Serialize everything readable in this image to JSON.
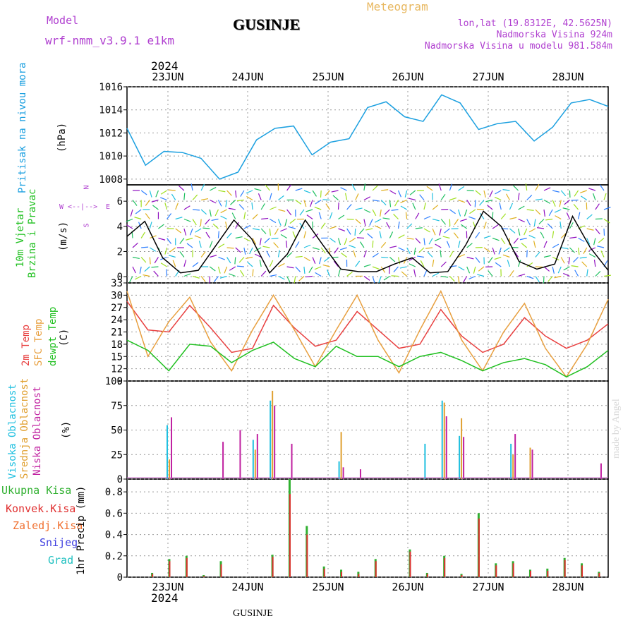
{
  "header": {
    "model_label": "Model",
    "model_value": "wrf-nmm_v3.9.1 e1km",
    "station": "GUSINJE",
    "meteogram": "Meteogram",
    "lonlat": "lon,lat (19.8312E, 42.5625N)",
    "altitude": "Nadmorska Visina 924m",
    "model_altitude": "Nadmorska Visina u modelu 981.584m",
    "year_top": "2024",
    "year_bottom": "2024",
    "footer_station": "GUSINJE",
    "watermark": "made by Angel"
  },
  "panel_labels": {
    "pressure": [
      "Pritisak na nivou mora",
      "(hPa)"
    ],
    "wind": [
      "10m Vjetar",
      "Brzina i Pravac",
      "(m/s)"
    ],
    "compass": [
      "N",
      "W",
      "E",
      "S"
    ],
    "temp": [
      "2m Temp",
      "SFC Temp",
      "dewpt Temp",
      "(C)"
    ],
    "cloud": [
      "Visoka Oblacnost",
      "Srednja Oblacnost",
      "Niska Oblacnost",
      "(%)"
    ],
    "precip_legend": [
      "Ukupna Kisa",
      "Konvek.Kisa",
      "Zaledj.Kisa",
      "Snijeg",
      "Grad"
    ],
    "precip_unit": "1hr Precip (mm)"
  },
  "colors": {
    "pressure": "#1ca0e0",
    "temp2m": "#e84040",
    "sfc": "#e8a040",
    "dew": "#20c020",
    "high": "#20c0e0",
    "mid": "#e0a030",
    "low": "#c020a0",
    "total": "#30b030",
    "conv": "#e03030",
    "frozen": "#f07030",
    "snow": "#4040e0",
    "hail": "#20c0c0"
  },
  "chart_data": [
    {
      "type": "line",
      "panel": "pressure",
      "x": [
        "22JUN 12",
        "23JUN 00",
        "23JUN 03",
        "23JUN 06",
        "23JUN 12",
        "23JUN 18",
        "23JUN 21",
        "24JUN 00",
        "24JUN 06",
        "24JUN 12",
        "24JUN 18",
        "24JUN 21",
        "25JUN 00",
        "25JUN 06",
        "25JUN 12",
        "25JUN 18",
        "26JUN 00",
        "26JUN 06",
        "26JUN 12",
        "26JUN 18",
        "27JUN 00",
        "27JUN 06",
        "27JUN 12",
        "27JUN 18",
        "28JUN 00",
        "28JUN 06",
        "28JUN 12"
      ],
      "series": [
        {
          "values": [
            1012.4,
            1009.2,
            1010.4,
            1010.3,
            1009.8,
            1008.0,
            1008.6,
            1011.4,
            1012.4,
            1012.6,
            1010.1,
            1011.2,
            1011.5,
            1014.2,
            1014.7,
            1013.4,
            1013.0,
            1015.3,
            1014.6,
            1012.3,
            1012.8,
            1013.0,
            1011.3,
            1012.5,
            1014.6,
            1014.9,
            1014.3
          ]
        }
      ],
      "yticks": [
        1008,
        1010,
        1012,
        1014,
        1016
      ],
      "ylim": [
        1007.5,
        1016
      ]
    },
    {
      "type": "line",
      "panel": "wind_speed",
      "yticks": [
        0,
        2,
        4,
        6
      ],
      "ylim": [
        -0.5,
        7.3
      ],
      "series": [
        {
          "values": [
            3.2,
            4.4,
            1.5,
            0.3,
            0.5,
            2.5,
            4.5,
            3.0,
            0.3,
            1.8,
            4.5,
            2.5,
            0.6,
            0.4,
            0.4,
            1.0,
            1.5,
            0.3,
            0.4,
            2.5,
            5.2,
            4.0,
            1.2,
            0.6,
            1.0,
            4.8,
            2.3,
            0.5
          ]
        }
      ]
    },
    {
      "type": "line",
      "panel": "temperature",
      "x": [
        "22JUN 12",
        "23JUN 00",
        "23JUN 06",
        "23JUN 12",
        "23JUN 18",
        "24JUN 00",
        "24JUN 06",
        "24JUN 12",
        "24JUN 18",
        "25JUN 00",
        "25JUN 06",
        "25JUN 12",
        "25JUN 18",
        "26JUN 00",
        "26JUN 06",
        "26JUN 12",
        "26JUN 18",
        "27JUN 00",
        "27JUN 06",
        "27JUN 12",
        "27JUN 18",
        "28JUN 00",
        "28JUN 06",
        "28JUN 12"
      ],
      "series": [
        {
          "name": "2m Temp",
          "values": [
            28.5,
            21.5,
            21.0,
            27.5,
            22.0,
            16.0,
            17.0,
            27.5,
            22.0,
            17.5,
            19.0,
            26.0,
            21.5,
            17.0,
            18.0,
            26.5,
            20.0,
            16.0,
            18.0,
            24.5,
            20.0,
            17.0,
            19.0,
            23.0
          ]
        },
        {
          "name": "SFC Temp",
          "values": [
            31.0,
            15.0,
            23.5,
            29.5,
            18.5,
            11.5,
            21.5,
            30.0,
            21.5,
            12.5,
            21.5,
            30.0,
            19.0,
            11.0,
            21.5,
            31.0,
            19.0,
            11.5,
            21.0,
            28.0,
            17.0,
            10.0,
            18.0,
            29.0
          ]
        },
        {
          "name": "dewpt Temp",
          "values": [
            19.0,
            16.5,
            11.5,
            18.0,
            17.5,
            13.5,
            16.5,
            18.5,
            14.5,
            12.5,
            17.5,
            15.0,
            15.0,
            12.5,
            15.0,
            16.0,
            14.0,
            11.5,
            13.5,
            14.5,
            13.0,
            10.0,
            12.5,
            16.5
          ]
        }
      ],
      "yticks": [
        9,
        12,
        15,
        18,
        21,
        24,
        27,
        30,
        33
      ],
      "ylim": [
        9,
        33
      ]
    },
    {
      "type": "bar",
      "panel": "cloud",
      "yticks": [
        0,
        25,
        50,
        75,
        100
      ],
      "ylim": [
        0,
        100
      ],
      "series": [
        {
          "name": "Visoka Oblacnost",
          "values": [
            0,
            0,
            55,
            0,
            0,
            0,
            0,
            40,
            80,
            0,
            0,
            0,
            18,
            0,
            0,
            0,
            0,
            36,
            80,
            44,
            0,
            0,
            36,
            0,
            0,
            0,
            0,
            0
          ]
        },
        {
          "name": "Srednja Oblacnost",
          "values": [
            0,
            0,
            20,
            0,
            0,
            0,
            0,
            30,
            90,
            0,
            0,
            0,
            48,
            0,
            0,
            0,
            0,
            0,
            78,
            62,
            0,
            0,
            25,
            32,
            0,
            0,
            0,
            0
          ]
        },
        {
          "name": "Niska Oblacnost",
          "values": [
            0,
            0,
            63,
            0,
            0,
            38,
            50,
            46,
            75,
            36,
            0,
            0,
            12,
            10,
            0,
            0,
            0,
            0,
            64,
            43,
            0,
            0,
            46,
            30,
            0,
            0,
            0,
            16
          ]
        }
      ]
    },
    {
      "type": "bar",
      "panel": "precip",
      "yticks": [
        0,
        0.2,
        0.4,
        0.6,
        0.8
      ],
      "ylim": [
        0,
        0.92
      ],
      "series": [
        {
          "name": "Ukupna Kisa",
          "values": [
            0,
            0.04,
            0.17,
            0.2,
            0.02,
            0.15,
            0,
            0,
            0.21,
            0.92,
            0.48,
            0.1,
            0.07,
            0.05,
            0.17,
            0,
            0.26,
            0.04,
            0.2,
            0.03,
            0.6,
            0.13,
            0.15,
            0.07,
            0.08,
            0.18,
            0.13,
            0.05
          ]
        },
        {
          "name": "Konvek.Kisa",
          "values": [
            0,
            0.03,
            0.15,
            0.18,
            0.01,
            0.12,
            0,
            0,
            0.19,
            0.78,
            0.4,
            0.08,
            0.05,
            0.03,
            0.15,
            0,
            0.24,
            0.03,
            0.18,
            0.02,
            0.55,
            0.11,
            0.13,
            0.06,
            0.06,
            0.16,
            0.11,
            0.04
          ]
        }
      ]
    }
  ]
}
